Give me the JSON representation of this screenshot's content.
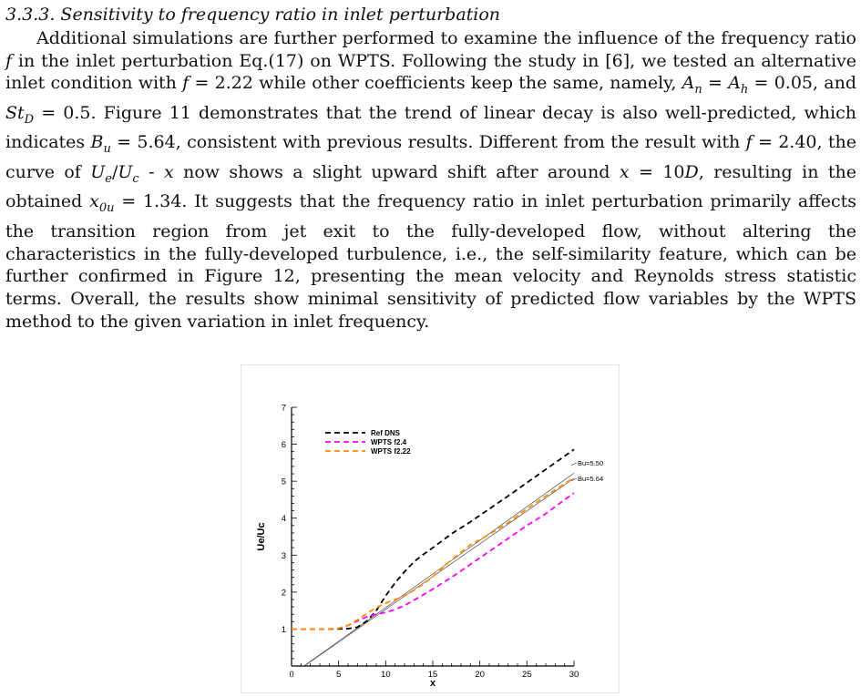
{
  "section": {
    "heading": "3.3.3. Sensitivity to frequency ratio in inlet perturbation",
    "paragraph": [
      {
        "t": "Additional simulations are further performed to examine the influence of the frequency ratio "
      },
      {
        "m": "f"
      },
      {
        "t": " in the inlet perturbation Eq.(17) on WPTS. Following the study in [6], we tested an alternative inlet condition with "
      },
      {
        "m": "f"
      },
      {
        "t": " = 2.22 while other coefficients keep the same, namely, "
      },
      {
        "m": "A"
      },
      {
        "sub": "n"
      },
      {
        "t": " = "
      },
      {
        "m": "A"
      },
      {
        "sub": "h"
      },
      {
        "t": " = 0.05, and "
      },
      {
        "m": "St"
      },
      {
        "sub": "D"
      },
      {
        "t": " = 0.5. Figure 11 demonstrates that the trend of linear decay is also well-predicted, which indicates "
      },
      {
        "m": "B"
      },
      {
        "sub": "u"
      },
      {
        "t": " = 5.64, consistent with previous results. Different from the result with "
      },
      {
        "m": "f"
      },
      {
        "t": " = 2.40, the curve of "
      },
      {
        "m": "U"
      },
      {
        "sub": "e"
      },
      {
        "t": "/"
      },
      {
        "m": "U"
      },
      {
        "sub": "c"
      },
      {
        "t": " - "
      },
      {
        "m": "x"
      },
      {
        "t": " now shows a slight upward shift after around "
      },
      {
        "m": "x"
      },
      {
        "t": " = 10"
      },
      {
        "m": "D"
      },
      {
        "t": ", resulting in the obtained "
      },
      {
        "m": "x"
      },
      {
        "sub": "0u"
      },
      {
        "t": " = 1.34. It suggests that the frequency ratio in inlet perturbation primarily affects the transition region from jet exit to the fully-developed flow, without altering the characteristics in the fully-developed turbulence, i.e., the self-similarity feature, which can be further confirmed in Figure 12, presenting the mean velocity and Reynolds stress statistic terms. Overall, the results show minimal sensitivity of predicted flow variables by the WPTS method to the given variation in inlet frequency."
      }
    ]
  },
  "chart_data": {
    "type": "line",
    "title": "",
    "xlabel": "x",
    "ylabel": "Ue/Uc",
    "xlim": [
      0,
      30
    ],
    "ylim": [
      0,
      7
    ],
    "xticks": [
      0,
      5,
      10,
      15,
      20,
      25,
      30
    ],
    "yticks": [
      1,
      2,
      3,
      4,
      5,
      6,
      7
    ],
    "legend_position": "top-left",
    "grid": false,
    "series": [
      {
        "name": "Ref DNS",
        "color": "#000000",
        "dash": "dashed",
        "x": [
          0,
          2,
          4,
          5,
          6,
          7,
          8,
          9,
          10,
          11,
          12,
          13,
          14,
          15,
          17,
          19,
          21,
          23,
          25,
          27,
          29,
          30
        ],
        "y": [
          1.0,
          1.0,
          1.0,
          1.0,
          1.01,
          1.05,
          1.22,
          1.5,
          1.9,
          2.25,
          2.55,
          2.82,
          3.02,
          3.2,
          3.58,
          3.9,
          4.25,
          4.6,
          4.96,
          5.32,
          5.68,
          5.86
        ]
      },
      {
        "name": "WPTS f2.4",
        "color": "#ff00ff",
        "dash": "dashed",
        "x": [
          0,
          2,
          4,
          5,
          6,
          7,
          8,
          9,
          10,
          11,
          12,
          13,
          14,
          15,
          17,
          19,
          21,
          23,
          25,
          27,
          29,
          30
        ],
        "y": [
          1.0,
          1.0,
          1.0,
          1.02,
          1.1,
          1.22,
          1.33,
          1.4,
          1.45,
          1.53,
          1.64,
          1.78,
          1.93,
          2.08,
          2.4,
          2.75,
          3.1,
          3.45,
          3.8,
          4.12,
          4.5,
          4.68
        ]
      },
      {
        "name": "WPTS f2.22",
        "color": "#ff8c00",
        "dash": "dashed",
        "x": [
          0,
          2,
          4,
          5,
          6,
          7,
          8,
          9,
          10,
          11,
          12,
          13,
          14,
          15,
          17,
          19,
          21,
          23,
          25,
          27,
          29,
          30
        ],
        "y": [
          1.0,
          1.0,
          1.0,
          1.02,
          1.1,
          1.25,
          1.42,
          1.58,
          1.7,
          1.8,
          1.9,
          2.05,
          2.22,
          2.42,
          2.88,
          3.28,
          3.56,
          3.88,
          4.25,
          4.6,
          4.93,
          5.1
        ]
      }
    ],
    "reference_lines": [
      {
        "label": "Bu=5.50",
        "x": [
          0,
          30
        ],
        "y": [
          -0.24,
          5.22
        ]
      },
      {
        "label": "Bu=5.64",
        "x": [
          0,
          30
        ],
        "y": [
          -0.24,
          5.08
        ]
      }
    ]
  }
}
